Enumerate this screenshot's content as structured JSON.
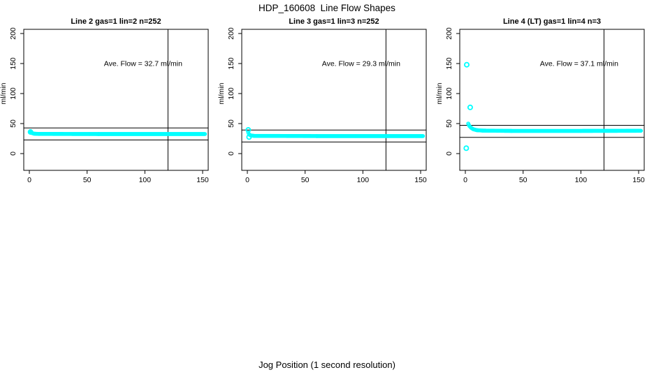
{
  "title": "HDP_160608  Line Flow Shapes",
  "xlabel": "Jog Position (1 second resolution)",
  "colors": {
    "data_points": "#00ffff",
    "axis": "#000000",
    "background": "#ffffff"
  },
  "chart_data": [
    {
      "type": "scatter",
      "title": "Line 2 gas=1 lin=2 n=252",
      "ylabel": "ml/min",
      "annotation": "Ave. Flow =  32.7  ml/min",
      "ave_flow": 32.7,
      "xticks": [
        0,
        50,
        100,
        150
      ],
      "yticks": [
        0,
        50,
        100,
        150,
        200
      ],
      "xlim": [
        0,
        155
      ],
      "ylim": [
        0,
        207
      ],
      "ref_line_upper": 42.7,
      "ref_line_lower": 22.7,
      "vline_x": 120,
      "band": [
        [
          1,
          36
        ],
        [
          2,
          34.5
        ],
        [
          4,
          33.2
        ],
        [
          8,
          32.8
        ],
        [
          60,
          32.6
        ],
        [
          152,
          32.6
        ]
      ],
      "outliers": [
        [
          1,
          36
        ]
      ]
    },
    {
      "type": "scatter",
      "title": "Line 3 gas=1 lin=3 n=252",
      "ylabel": "ml/min",
      "annotation": "Ave. Flow =  29.3  ml/min",
      "ave_flow": 29.3,
      "xticks": [
        0,
        50,
        100,
        150
      ],
      "yticks": [
        0,
        50,
        100,
        150,
        200
      ],
      "xlim": [
        0,
        155
      ],
      "ylim": [
        0,
        207
      ],
      "ref_line_upper": 39.3,
      "ref_line_lower": 19.3,
      "vline_x": 120,
      "band": [
        [
          0.8,
          35
        ],
        [
          1.5,
          32
        ],
        [
          3,
          30.2
        ],
        [
          6,
          29.5
        ],
        [
          60,
          29.2
        ],
        [
          152,
          29.2
        ]
      ],
      "outliers": [
        [
          0.8,
          39.5
        ],
        [
          1.5,
          27.5
        ]
      ]
    },
    {
      "type": "scatter",
      "title": "Line 4 (LT) gas=1 lin=4 n=3",
      "ylabel": "ml/min",
      "annotation": "Ave. Flow =  37.1  ml/min",
      "ave_flow": 37.1,
      "xticks": [
        0,
        50,
        100,
        150
      ],
      "yticks": [
        0,
        50,
        100,
        150,
        200
      ],
      "xlim": [
        0,
        155
      ],
      "ylim": [
        0,
        207
      ],
      "ref_line_upper": 47.1,
      "ref_line_lower": 27.1,
      "vline_x": 120,
      "band": [
        [
          2.5,
          50
        ],
        [
          3.5,
          46
        ],
        [
          5,
          43
        ],
        [
          7,
          40.5
        ],
        [
          10,
          39
        ],
        [
          15,
          38.3
        ],
        [
          40,
          37.8
        ],
        [
          100,
          37.8
        ],
        [
          152,
          38
        ]
      ],
      "outliers": [
        [
          1.2,
          148
        ],
        [
          4.2,
          77
        ],
        [
          0.8,
          9
        ]
      ]
    }
  ]
}
